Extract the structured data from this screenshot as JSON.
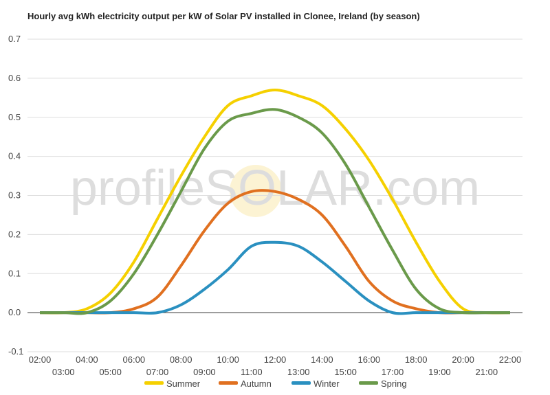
{
  "chart_data": {
    "type": "line",
    "title": "Hourly avg kWh electricity output per kW of Solar PV installed in Clonee, Ireland (by season)",
    "watermark": "profileSOLAR.com",
    "categories": [
      "02:00",
      "03:00",
      "04:00",
      "05:00",
      "06:00",
      "07:00",
      "08:00",
      "09:00",
      "10:00",
      "11:00",
      "12:00",
      "13:00",
      "14:00",
      "15:00",
      "16:00",
      "17:00",
      "18:00",
      "19:00",
      "20:00",
      "21:00",
      "22:00"
    ],
    "series": [
      {
        "name": "Summer",
        "color": "#f5d000",
        "values": [
          0,
          0,
          0.01,
          0.05,
          0.13,
          0.24,
          0.35,
          0.45,
          0.53,
          0.555,
          0.57,
          0.555,
          0.53,
          0.47,
          0.39,
          0.29,
          0.18,
          0.08,
          0.01,
          0,
          0
        ]
      },
      {
        "name": "Autumn",
        "color": "#e07020",
        "values": [
          0,
          0,
          0,
          0,
          0.01,
          0.04,
          0.12,
          0.21,
          0.28,
          0.31,
          0.31,
          0.29,
          0.25,
          0.17,
          0.08,
          0.03,
          0.01,
          0,
          0,
          0,
          0
        ]
      },
      {
        "name": "Winter",
        "color": "#2a90c0",
        "values": [
          0,
          0,
          0,
          0,
          0,
          0,
          0.02,
          0.06,
          0.11,
          0.17,
          0.18,
          0.17,
          0.13,
          0.08,
          0.03,
          0,
          0,
          0,
          0,
          0,
          0
        ]
      },
      {
        "name": "Spring",
        "color": "#6a9a4a",
        "values": [
          0,
          0,
          0,
          0.03,
          0.1,
          0.2,
          0.31,
          0.42,
          0.49,
          0.51,
          0.52,
          0.5,
          0.46,
          0.38,
          0.27,
          0.16,
          0.06,
          0.01,
          0,
          0,
          0
        ]
      }
    ],
    "ylim": [
      -0.1,
      0.7
    ],
    "yticks": [
      -0.1,
      {
        "value": 0,
        "label": "0.0"
      },
      0.1,
      0.2,
      0.3,
      0.4,
      0.5,
      0.6,
      0.7
    ],
    "grid": true,
    "legend": "bottom"
  }
}
